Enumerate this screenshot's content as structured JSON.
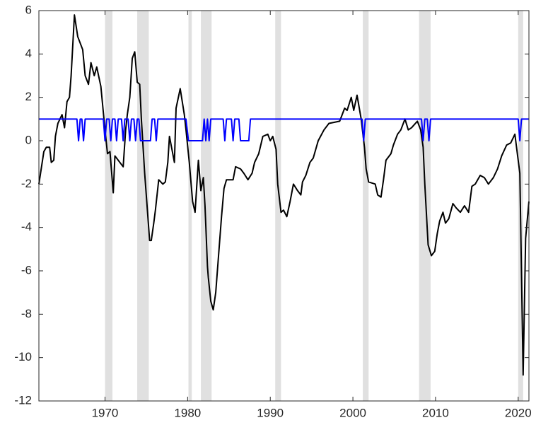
{
  "chart_data": {
    "type": "line",
    "xlim": [
      1962,
      2021.3
    ],
    "ylim": [
      -12,
      6
    ],
    "xticks": [
      1970,
      1980,
      1990,
      2000,
      2010,
      2020
    ],
    "yticks": [
      -12,
      -10,
      -8,
      -6,
      -4,
      -2,
      0,
      2,
      4,
      6
    ],
    "grid": false,
    "shaded_periods": [
      [
        1970.0,
        1970.9
      ],
      [
        1973.9,
        1975.3
      ],
      [
        1980.1,
        1980.5
      ],
      [
        1981.6,
        1982.9
      ],
      [
        1990.6,
        1991.3
      ],
      [
        2001.2,
        2001.9
      ],
      [
        2008.0,
        2009.4
      ],
      [
        2020.0,
        2020.6
      ]
    ],
    "shade_color": "#e0e0e0",
    "series": [
      {
        "color": "#000000",
        "x": [
          1962.0,
          1962.6,
          1962.9,
          1963.3,
          1963.5,
          1963.8,
          1964.0,
          1964.3,
          1964.8,
          1965.1,
          1965.4,
          1965.7,
          1965.9,
          1966.3,
          1966.7,
          1967.3,
          1967.6,
          1968.0,
          1968.3,
          1968.7,
          1969.0,
          1969.5,
          1970.0,
          1970.3,
          1970.6,
          1971.0,
          1971.2,
          1971.8,
          1972.2,
          1972.5,
          1972.7,
          1973.0,
          1973.3,
          1973.6,
          1973.9,
          1974.2,
          1974.4,
          1974.8,
          1975.4,
          1975.6,
          1975.9,
          1976.1,
          1976.5,
          1977.0,
          1977.3,
          1977.6,
          1977.8,
          1978.4,
          1978.6,
          1979.1,
          1979.6,
          1979.8,
          1980.2,
          1980.6,
          1980.9,
          1981.3,
          1981.6,
          1981.9,
          1982.1,
          1982.4,
          1982.5,
          1982.8,
          1983.1,
          1983.4,
          1983.7,
          1984.1,
          1984.4,
          1984.7,
          1985.5,
          1985.8,
          1986.4,
          1986.8,
          1987.3,
          1987.8,
          1988.1,
          1988.6,
          1989.1,
          1989.7,
          1990.0,
          1990.3,
          1990.7,
          1990.9,
          1991.3,
          1991.6,
          1992.0,
          1992.4,
          1992.8,
          1993.3,
          1993.7,
          1993.9,
          1994.3,
          1994.8,
          1995.2,
          1995.8,
          1996.5,
          1997.1,
          1998.4,
          1999.0,
          1999.3,
          1999.8,
          2000.1,
          2000.5,
          2001.0,
          2001.4,
          2001.6,
          2001.9,
          2002.7,
          2003.0,
          2003.4,
          2003.7,
          2004.0,
          2004.6,
          2004.9,
          2005.4,
          2005.8,
          2006.3,
          2006.7,
          2007.1,
          2007.8,
          2008.2,
          2008.5,
          2008.7,
          2009.1,
          2009.5,
          2009.9,
          2010.2,
          2010.5,
          2010.9,
          2011.2,
          2011.6,
          2012.1,
          2012.5,
          2013.0,
          2013.5,
          2014.0,
          2014.4,
          2014.8,
          2015.4,
          2015.9,
          2016.4,
          2017.0,
          2017.5,
          2018.0,
          2018.6,
          2019.1,
          2019.6,
          2020.2,
          2020.6,
          2020.9,
          2021.3
        ],
        "values": [
          -2.0,
          -0.5,
          -0.3,
          -0.3,
          -1.0,
          -0.9,
          0.2,
          0.8,
          1.2,
          0.6,
          1.8,
          2.0,
          3.0,
          5.8,
          4.8,
          4.2,
          3.0,
          2.6,
          3.6,
          3.0,
          3.4,
          2.5,
          0.5,
          -0.6,
          -0.5,
          -2.4,
          -0.7,
          -1.0,
          -1.2,
          0.5,
          1.2,
          2.0,
          3.8,
          4.1,
          2.7,
          2.6,
          1.0,
          -1.5,
          -4.6,
          -4.6,
          -3.8,
          -3.2,
          -1.8,
          -2.0,
          -1.9,
          -1.0,
          0.2,
          -1.0,
          1.5,
          2.4,
          1.2,
          0.5,
          -1.0,
          -2.8,
          -3.3,
          -0.9,
          -2.3,
          -1.7,
          -3.0,
          -5.8,
          -6.3,
          -7.4,
          -7.8,
          -7.0,
          -5.5,
          -3.5,
          -2.2,
          -1.8,
          -1.8,
          -1.2,
          -1.3,
          -1.5,
          -1.8,
          -1.5,
          -1.0,
          -0.6,
          0.2,
          0.3,
          0.0,
          0.2,
          -0.4,
          -2.0,
          -3.3,
          -3.2,
          -3.5,
          -2.8,
          -2.0,
          -2.3,
          -2.5,
          -1.9,
          -1.6,
          -1.0,
          -0.8,
          0.0,
          0.5,
          0.8,
          0.9,
          1.5,
          1.4,
          2.0,
          1.4,
          2.1,
          1.0,
          -0.3,
          -1.3,
          -1.9,
          -2.0,
          -2.5,
          -2.6,
          -1.8,
          -0.9,
          -0.6,
          -0.2,
          0.3,
          0.5,
          1.0,
          0.5,
          0.6,
          0.9,
          0.5,
          -0.3,
          -2.0,
          -4.8,
          -5.3,
          -5.1,
          -4.3,
          -3.7,
          -3.3,
          -3.8,
          -3.6,
          -2.9,
          -3.1,
          -3.3,
          -3.0,
          -3.3,
          -2.1,
          -2.0,
          -1.6,
          -1.7,
          -2.0,
          -1.7,
          -1.3,
          -0.7,
          -0.2,
          -0.1,
          0.3,
          -1.5,
          -10.8,
          -4.5,
          -2.8
        ]
      },
      {
        "color": "#0000ff",
        "x": [
          1962.0,
          1966.6,
          1966.8,
          1967.0,
          1967.2,
          1967.4,
          1967.6,
          1969.8,
          1970.0,
          1970.2,
          1970.5,
          1970.7,
          1970.9,
          1971.2,
          1971.4,
          1971.6,
          1972.0,
          1972.2,
          1972.4,
          1972.8,
          1973.0,
          1973.2,
          1973.5,
          1973.7,
          1973.9,
          1974.1,
          1974.3,
          1975.5,
          1975.7,
          1976.0,
          1976.2,
          1976.4,
          1979.8,
          1980.1,
          1981.8,
          1982.0,
          1982.2,
          1982.4,
          1982.6,
          1982.8,
          1984.3,
          1984.5,
          1984.7,
          1985.3,
          1985.5,
          1985.7,
          1986.2,
          1986.4,
          1987.4,
          1987.6,
          2001.1,
          2001.3,
          2001.5,
          2008.3,
          2008.5,
          2008.7,
          2009.0,
          2009.2,
          2009.4,
          2020.0,
          2020.2,
          2020.4,
          2021.3
        ],
        "values": [
          1,
          1,
          0,
          1,
          1,
          0,
          1,
          1,
          0,
          1,
          1,
          0,
          1,
          1,
          0,
          1,
          1,
          0,
          1,
          1,
          0,
          1,
          1,
          0,
          1,
          1,
          0,
          0,
          1,
          1,
          0,
          1,
          1,
          0,
          0,
          1,
          0,
          1,
          0,
          1,
          1,
          0,
          1,
          1,
          0,
          1,
          1,
          0,
          0,
          1,
          1,
          0,
          1,
          1,
          0,
          1,
          1,
          0,
          1,
          1,
          0,
          1,
          1
        ]
      }
    ]
  }
}
